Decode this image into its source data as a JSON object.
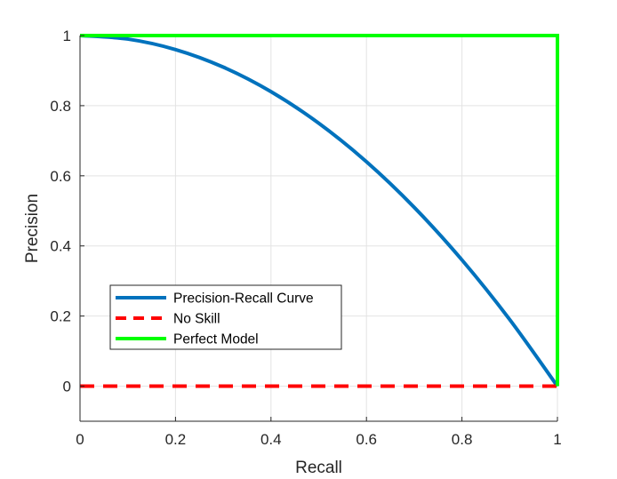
{
  "chart_data": {
    "type": "line",
    "xlabel": "Recall",
    "ylabel": "Precision",
    "xlim": [
      0,
      1
    ],
    "ylim": [
      -0.1,
      1
    ],
    "xticks": [
      0,
      0.2,
      0.4,
      0.6,
      0.8,
      1
    ],
    "yticks": [
      0,
      0.2,
      0.4,
      0.6,
      0.8,
      1
    ],
    "xtick_labels": [
      "0",
      "0.2",
      "0.4",
      "0.6",
      "0.8",
      "1"
    ],
    "ytick_labels": [
      "0",
      "0.2",
      "0.4",
      "0.6",
      "0.8",
      "1"
    ],
    "grid": true,
    "legend_position": "bottom-left",
    "series": [
      {
        "name": "Precision-Recall Curve",
        "color": "#0072BD",
        "style": "solid",
        "x": [
          0,
          0.1,
          0.2,
          0.3,
          0.4,
          0.5,
          0.6,
          0.7,
          0.8,
          0.9,
          1.0
        ],
        "y": [
          1.0,
          0.99,
          0.96,
          0.91,
          0.84,
          0.75,
          0.64,
          0.51,
          0.36,
          0.19,
          0.0
        ]
      },
      {
        "name": "No Skill",
        "color": "#FF0000",
        "style": "dashed",
        "x": [
          0,
          1
        ],
        "y": [
          0,
          0
        ]
      },
      {
        "name": "Perfect Model",
        "color": "#00FF00",
        "style": "solid",
        "x": [
          0,
          1,
          1
        ],
        "y": [
          1,
          1,
          0
        ]
      }
    ]
  }
}
